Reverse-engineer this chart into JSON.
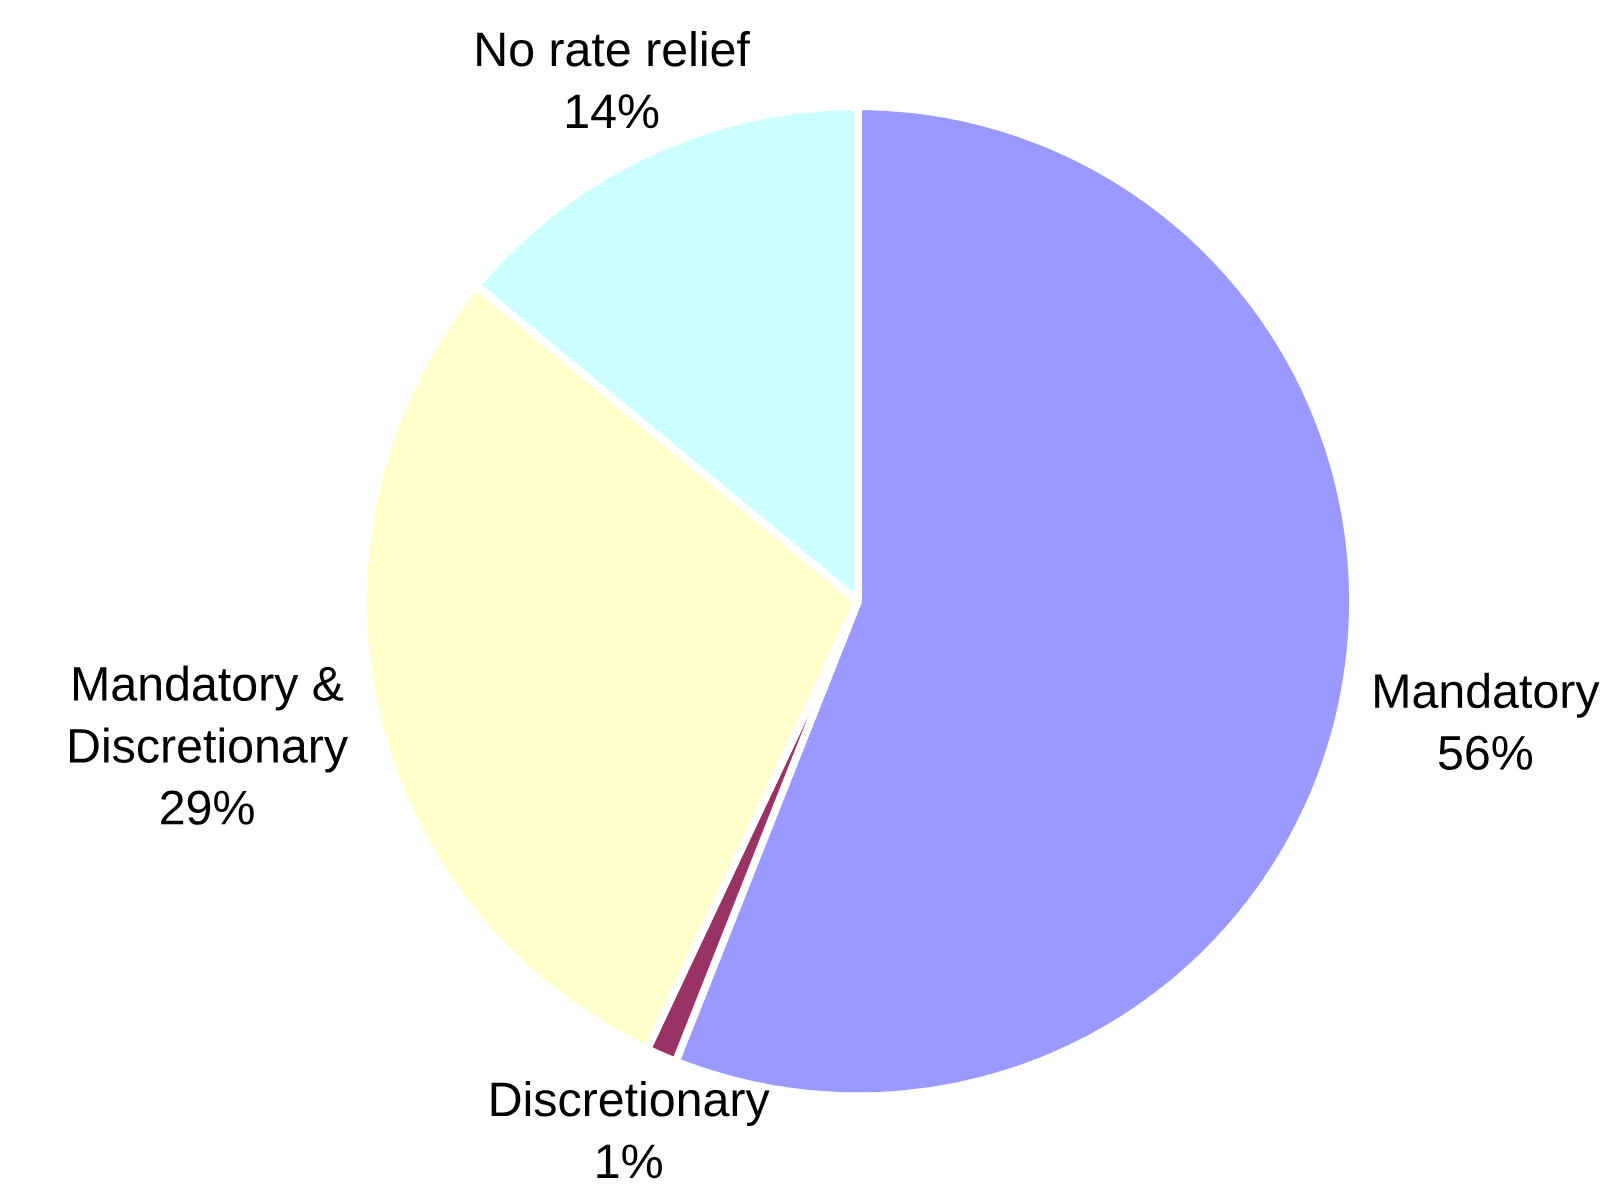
{
  "chart_data": {
    "type": "pie",
    "categories": [
      "Mandatory",
      "Discretionary",
      "Mandatory & Discretionary",
      "No rate relief"
    ],
    "values": [
      56,
      1,
      29,
      14
    ],
    "colors": [
      "#9999ff",
      "#993366",
      "#ffffcc",
      "#ccffff"
    ],
    "value_labels": [
      "56%",
      "1%",
      "29%",
      "14%"
    ]
  }
}
